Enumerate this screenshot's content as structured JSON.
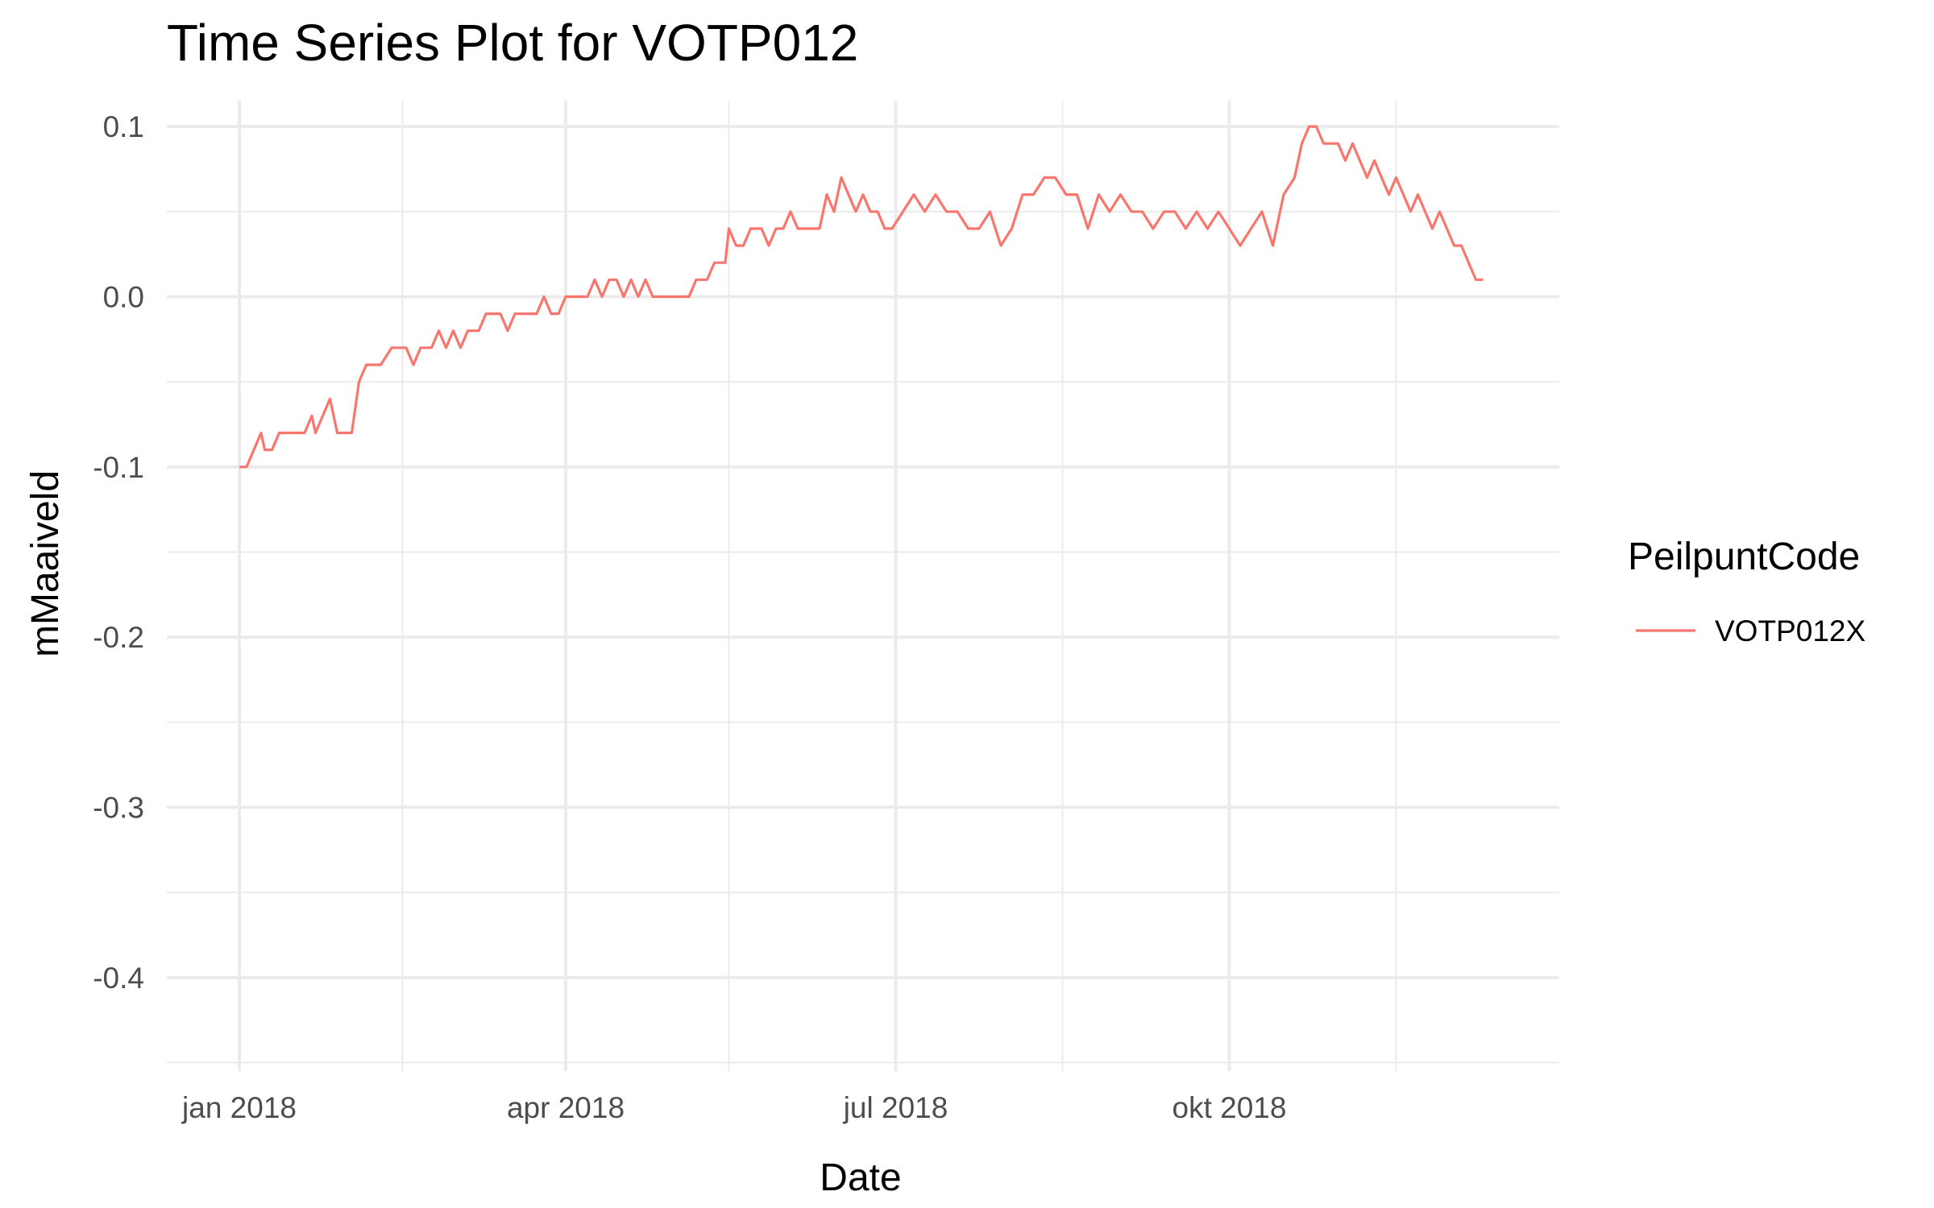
{
  "chart_data": {
    "type": "line",
    "title": "Time Series Plot for VOTP012",
    "xlabel": "Date",
    "ylabel": "mMaaiveld",
    "xlim": [
      "2017-12-12",
      "2018-12-31"
    ],
    "ylim": [
      -0.455,
      0.101
    ],
    "grid": true,
    "legend": {
      "title": "PeilpuntCode",
      "position": "right"
    },
    "x_ticks": [
      {
        "date": "2018-01-01",
        "label": "jan 2018"
      },
      {
        "date": "2018-04-01",
        "label": "apr 2018"
      },
      {
        "date": "2018-07-01",
        "label": "jul 2018"
      },
      {
        "date": "2018-10-01",
        "label": "okt 2018"
      }
    ],
    "x_minor_ticks": [
      "2018-02-15",
      "2018-05-16",
      "2018-08-16",
      "2018-11-16"
    ],
    "y_ticks": [
      {
        "value": 0.1,
        "label": "0.1"
      },
      {
        "value": 0.0,
        "label": "0.0"
      },
      {
        "value": -0.1,
        "label": "-0.1"
      },
      {
        "value": -0.2,
        "label": "-0.2"
      },
      {
        "value": -0.3,
        "label": "-0.3"
      },
      {
        "value": -0.4,
        "label": "-0.4"
      }
    ],
    "y_minor_ticks": [
      0.05,
      -0.05,
      -0.15,
      -0.25,
      -0.35,
      -0.45
    ],
    "series": [
      {
        "name": "VOTP012X",
        "color": "#F8766D",
        "points": [
          [
            "2018-01-01",
            -0.1
          ],
          [
            "2018-01-03",
            -0.1
          ],
          [
            "2018-01-07",
            -0.08
          ],
          [
            "2018-01-08",
            -0.09
          ],
          [
            "2018-01-10",
            -0.09
          ],
          [
            "2018-01-12",
            -0.08
          ],
          [
            "2018-01-19",
            -0.08
          ],
          [
            "2018-01-21",
            -0.07
          ],
          [
            "2018-01-22",
            -0.08
          ],
          [
            "2018-01-24",
            -0.07
          ],
          [
            "2018-01-26",
            -0.06
          ],
          [
            "2018-01-28",
            -0.08
          ],
          [
            "2018-02-01",
            -0.08
          ],
          [
            "2018-02-03",
            -0.05
          ],
          [
            "2018-02-05",
            -0.04
          ],
          [
            "2018-02-09",
            -0.04
          ],
          [
            "2018-02-12",
            -0.03
          ],
          [
            "2018-02-16",
            -0.03
          ],
          [
            "2018-02-18",
            -0.04
          ],
          [
            "2018-02-20",
            -0.03
          ],
          [
            "2018-02-23",
            -0.03
          ],
          [
            "2018-02-25",
            -0.02
          ],
          [
            "2018-02-27",
            -0.03
          ],
          [
            "2018-03-01",
            -0.02
          ],
          [
            "2018-03-03",
            -0.03
          ],
          [
            "2018-03-05",
            -0.02
          ],
          [
            "2018-03-08",
            -0.02
          ],
          [
            "2018-03-10",
            -0.01
          ],
          [
            "2018-03-14",
            -0.01
          ],
          [
            "2018-03-16",
            -0.02
          ],
          [
            "2018-03-18",
            -0.01
          ],
          [
            "2018-03-24",
            -0.01
          ],
          [
            "2018-03-26",
            0.0
          ],
          [
            "2018-03-28",
            -0.01
          ],
          [
            "2018-03-30",
            -0.01
          ],
          [
            "2018-04-01",
            0.0
          ],
          [
            "2018-04-07",
            0.0
          ],
          [
            "2018-04-09",
            0.01
          ],
          [
            "2018-04-11",
            0.0
          ],
          [
            "2018-04-13",
            0.01
          ],
          [
            "2018-04-15",
            0.01
          ],
          [
            "2018-04-17",
            0.0
          ],
          [
            "2018-04-19",
            0.01
          ],
          [
            "2018-04-21",
            0.0
          ],
          [
            "2018-04-23",
            0.01
          ],
          [
            "2018-04-25",
            0.0
          ],
          [
            "2018-05-05",
            0.0
          ],
          [
            "2018-05-07",
            0.01
          ],
          [
            "2018-05-10",
            0.01
          ],
          [
            "2018-05-12",
            0.02
          ],
          [
            "2018-05-15",
            0.02
          ],
          [
            "2018-05-16",
            0.04
          ],
          [
            "2018-05-18",
            0.03
          ],
          [
            "2018-05-20",
            0.03
          ],
          [
            "2018-05-22",
            0.04
          ],
          [
            "2018-05-25",
            0.04
          ],
          [
            "2018-05-27",
            0.03
          ],
          [
            "2018-05-29",
            0.04
          ],
          [
            "2018-05-31",
            0.04
          ],
          [
            "2018-06-02",
            0.05
          ],
          [
            "2018-06-04",
            0.04
          ],
          [
            "2018-06-10",
            0.04
          ],
          [
            "2018-06-12",
            0.06
          ],
          [
            "2018-06-14",
            0.05
          ],
          [
            "2018-06-16",
            0.07
          ],
          [
            "2018-06-18",
            0.06
          ],
          [
            "2018-06-20",
            0.05
          ],
          [
            "2018-06-22",
            0.06
          ],
          [
            "2018-06-24",
            0.05
          ],
          [
            "2018-06-26",
            0.05
          ],
          [
            "2018-06-28",
            0.04
          ],
          [
            "2018-06-30",
            0.04
          ]
        ]
      }
    ]
  }
}
